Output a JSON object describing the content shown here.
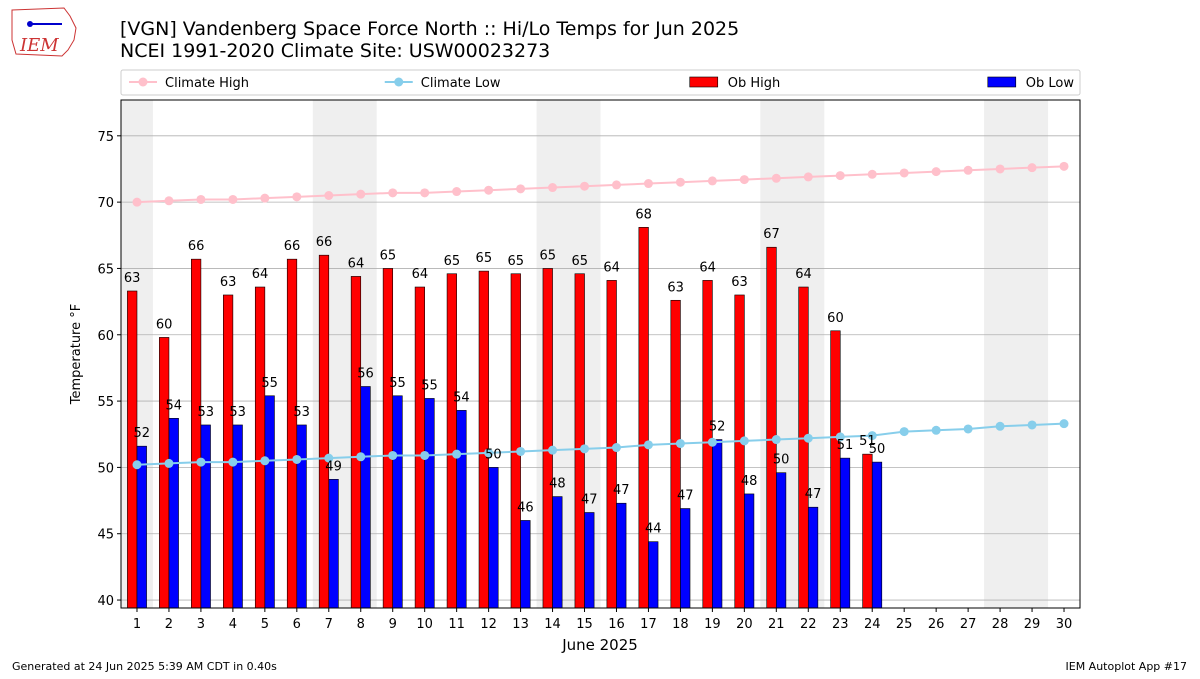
{
  "logo": "IEM",
  "chart_data": {
    "type": "bar",
    "title": "[VGN] Vandenberg Space Force North :: Hi/Lo Temps for Jun 2025",
    "subtitle": "NCEI 1991-2020 Climate Site: USW00023273",
    "xlabel": "June 2025",
    "ylabel": "Temperature °F",
    "footer_left": "Generated at 24 Jun 2025 5:39 AM CDT in 0.40s",
    "footer_right": "IEM Autoplot App #17",
    "x": [
      1,
      2,
      3,
      4,
      5,
      6,
      7,
      8,
      9,
      10,
      11,
      12,
      13,
      14,
      15,
      16,
      17,
      18,
      19,
      20,
      21,
      22,
      23,
      24,
      25,
      26,
      27,
      28,
      29,
      30
    ],
    "xlim": [
      0.5,
      30.5
    ],
    "xticks": [
      1,
      2,
      3,
      4,
      5,
      6,
      7,
      8,
      9,
      10,
      11,
      12,
      13,
      14,
      15,
      16,
      17,
      18,
      19,
      20,
      21,
      22,
      23,
      24,
      25,
      26,
      27,
      28,
      29,
      30
    ],
    "ylim": [
      39.4,
      77.7
    ],
    "yticks": [
      40,
      45,
      50,
      55,
      60,
      65,
      70,
      75
    ],
    "grid": true,
    "shaded_ranges": [
      [
        0.5,
        1.5
      ],
      [
        6.5,
        8.5
      ],
      [
        13.5,
        15.5
      ],
      [
        20.5,
        22.5
      ],
      [
        27.5,
        29.5
      ]
    ],
    "shade_color": "#efefef",
    "series": [
      {
        "name": "Climate High",
        "type": "line",
        "color": "#ffc0cb",
        "values": [
          70.0,
          70.1,
          70.2,
          70.2,
          70.3,
          70.4,
          70.5,
          70.6,
          70.7,
          70.7,
          70.8,
          70.9,
          71.0,
          71.1,
          71.2,
          71.3,
          71.4,
          71.5,
          71.6,
          71.7,
          71.8,
          71.9,
          72.0,
          72.1,
          72.2,
          72.3,
          72.4,
          72.5,
          72.6,
          72.7
        ]
      },
      {
        "name": "Climate Low",
        "type": "line",
        "color": "#87ceeb",
        "values": [
          50.2,
          50.3,
          50.4,
          50.4,
          50.5,
          50.6,
          50.7,
          50.8,
          50.9,
          50.9,
          51.0,
          51.1,
          51.2,
          51.3,
          51.4,
          51.5,
          51.7,
          51.8,
          51.9,
          52.0,
          52.1,
          52.2,
          52.3,
          52.4,
          52.7,
          52.8,
          52.9,
          53.1,
          53.2,
          53.3
        ]
      },
      {
        "name": "Ob High",
        "type": "bar",
        "color": "#ff0000",
        "values": [
          63.3,
          59.8,
          65.7,
          63.0,
          63.6,
          65.7,
          66.0,
          64.4,
          65.0,
          63.6,
          64.6,
          64.8,
          64.6,
          65.0,
          64.6,
          64.1,
          68.1,
          62.6,
          64.1,
          63.0,
          66.6,
          63.6,
          60.3,
          51.0,
          null,
          null,
          null,
          null,
          null,
          null
        ],
        "value_labels": [
          "63",
          "60",
          "66",
          "63",
          "64",
          "66",
          "66",
          "64",
          "65",
          "64",
          "65",
          "65",
          "65",
          "65",
          "65",
          "64",
          "68",
          "63",
          "64",
          "63",
          "67",
          "64",
          "60",
          "51",
          null,
          null,
          null,
          null,
          null,
          null
        ]
      },
      {
        "name": "Ob Low",
        "type": "bar",
        "color": "#0000ff",
        "values": [
          51.6,
          53.7,
          53.2,
          53.2,
          55.4,
          53.2,
          49.1,
          56.1,
          55.4,
          55.2,
          54.3,
          50.0,
          46.0,
          47.8,
          46.6,
          47.3,
          44.4,
          46.9,
          52.1,
          48.0,
          49.6,
          47.0,
          50.7,
          50.4,
          null,
          null,
          null,
          null,
          null,
          null
        ],
        "value_labels": [
          "52",
          "54",
          "53",
          "53",
          "55",
          "53",
          "49",
          "56",
          "55",
          "55",
          "54",
          "50",
          "46",
          "48",
          "47",
          "47",
          "44",
          "47",
          "52",
          "48",
          "50",
          "47",
          "51",
          "50",
          null,
          null,
          null,
          null,
          null,
          null
        ]
      }
    ]
  }
}
